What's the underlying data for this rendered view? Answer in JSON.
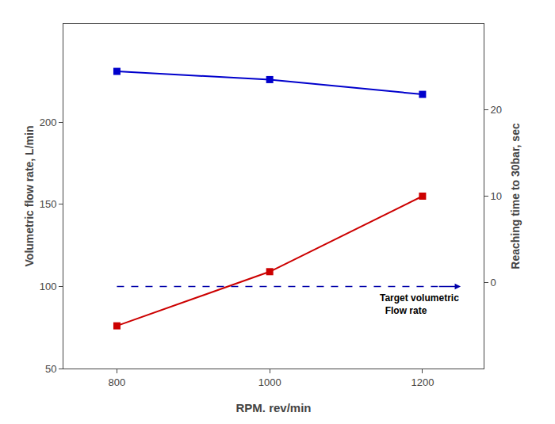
{
  "chart_data": {
    "type": "line",
    "x": [
      800,
      1000,
      1200
    ],
    "series": [
      {
        "color": "#0000CC",
        "marker": "square",
        "values": [
          231,
          226,
          217
        ]
      },
      {
        "color": "#CC0000",
        "marker": "square",
        "values": [
          76,
          109,
          155
        ]
      }
    ],
    "target_line": {
      "y": 100,
      "x": [
        800,
        1220
      ],
      "arrow_to": 1250,
      "color": "#0000AA",
      "line_style": "dashed"
    },
    "annotation": [
      "Target volumetric",
      "  Flow rate"
    ],
    "xlim": [
      730,
      1280
    ],
    "xticks": [
      800,
      1000,
      1200
    ],
    "ylim": [
      50,
      260
    ],
    "yticks": [
      50,
      100,
      150,
      200
    ],
    "y2lim": [
      -10,
      30
    ],
    "y2ticks": [
      0,
      10,
      20
    ],
    "xlabel": "RPM. rev/min",
    "ylabel": "Volumetric flow rate, L/min",
    "y2label": "Reaching time to 30bar, sec",
    "grid": false
  }
}
